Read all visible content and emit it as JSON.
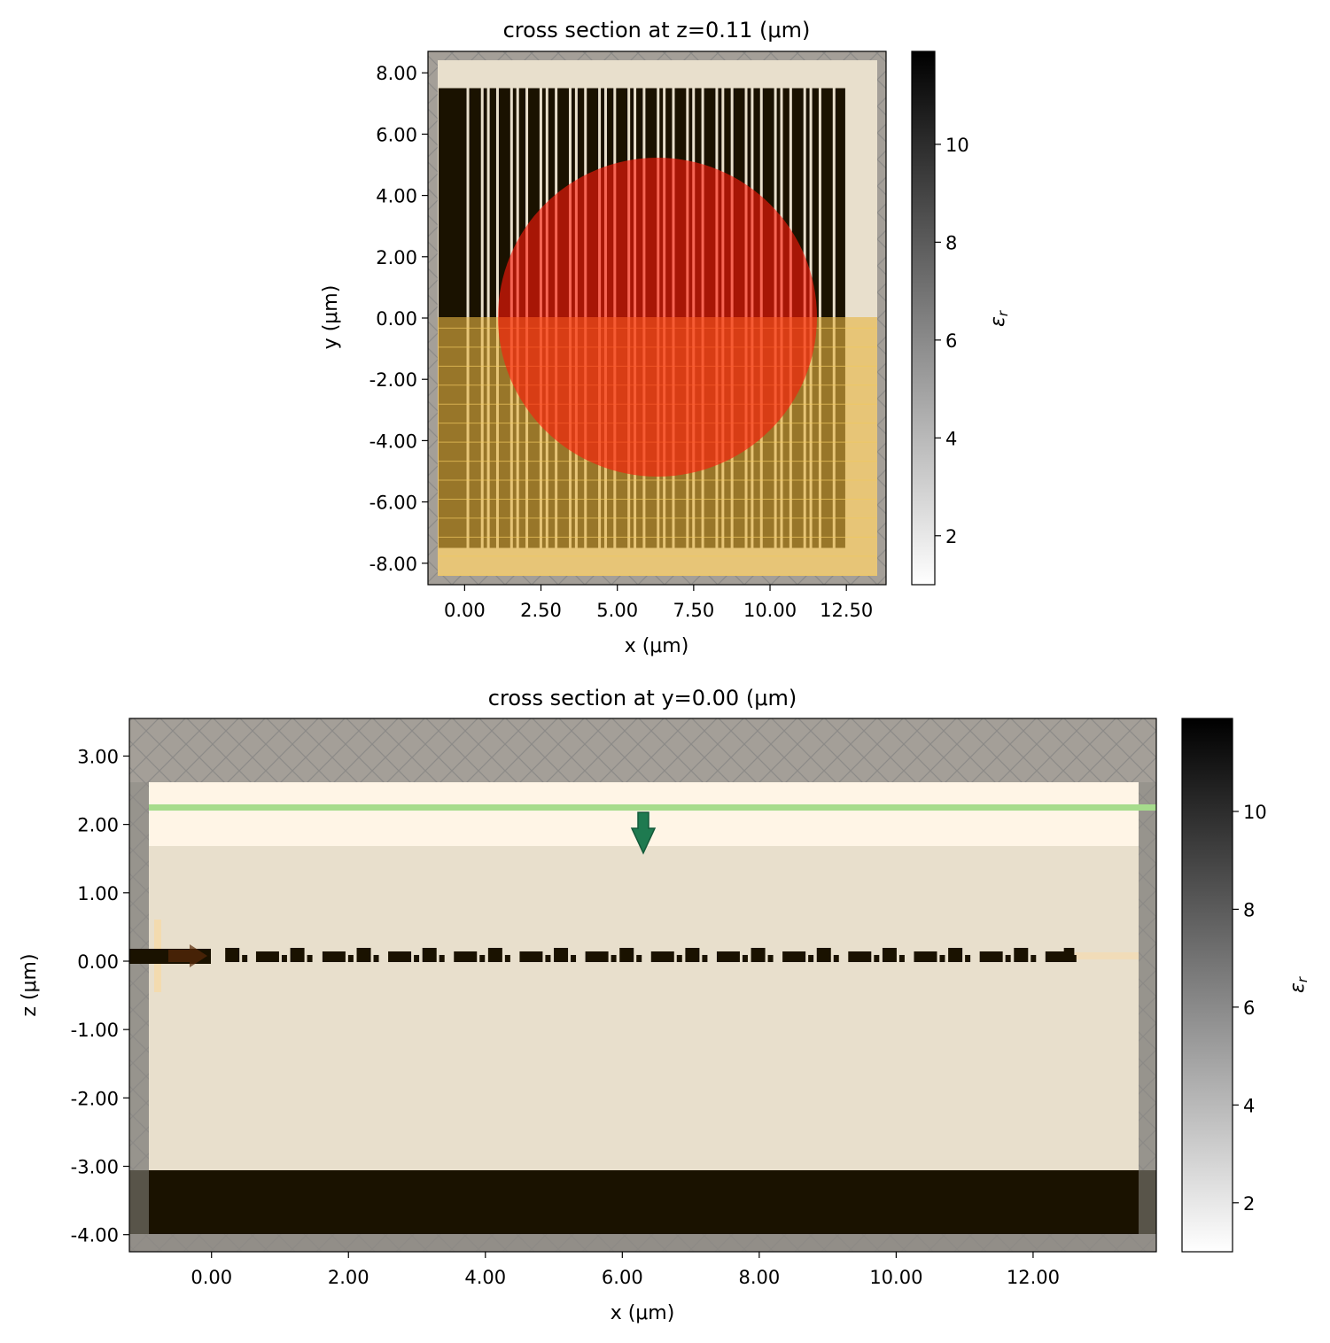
{
  "chart_data": [
    {
      "type": "heatmap",
      "title": "cross section at z=0.11 (μm)",
      "xlabel": "x (μm)",
      "ylabel": "y (μm)",
      "xlim": [
        -1.2,
        13.8
      ],
      "ylim": [
        -8.7,
        8.7
      ],
      "x_ticks": [
        0,
        2.5,
        5,
        7.5,
        10,
        12.5
      ],
      "x_tick_labels": [
        "0.00",
        "2.50",
        "5.00",
        "7.50",
        "10.00",
        "12.50"
      ],
      "y_ticks": [
        8,
        6,
        4,
        2,
        0,
        -2,
        -4,
        -6,
        -8
      ],
      "y_tick_labels": [
        "8.00",
        "6.00",
        "4.00",
        "2.00",
        "0.00",
        "-2.00",
        "-4.00",
        "-6.00",
        "-8.00"
      ],
      "colorbar": {
        "label": "ε_r",
        "range": [
          1,
          11.9
        ],
        "ticks": [
          2,
          4,
          6,
          8,
          10
        ],
        "tick_labels": [
          "2",
          "4",
          "6",
          "8",
          "10"
        ]
      },
      "grating_region": {
        "x": [
          -0.85,
          12.55
        ],
        "y": [
          -7.5,
          7.5
        ]
      },
      "grating_bars_x": [
        -0.85,
        0.15,
        0.62,
        0.82,
        1.12,
        1.58,
        1.78,
        2.08,
        2.54,
        2.74,
        3.04,
        3.5,
        3.7,
        4.0,
        4.46,
        4.66,
        4.96,
        5.42,
        5.62,
        5.92,
        6.38,
        6.58,
        6.88,
        7.34,
        7.54,
        7.84,
        8.3,
        8.5,
        8.8,
        9.26,
        9.46,
        9.76,
        10.22,
        10.42,
        10.72,
        11.18,
        11.38,
        11.68,
        12.14
      ],
      "gaussian_beam": {
        "center": [
          6.2,
          0
        ],
        "radius": 5.2
      },
      "substrate_half": {
        "y": [
          -8.5,
          0
        ]
      }
    },
    {
      "type": "heatmap",
      "title": "cross section at y=0.00 (μm)",
      "xlabel": "x (μm)",
      "ylabel": "z (μm)",
      "xlim": [
        -1.2,
        13.8
      ],
      "ylim": [
        -4.25,
        3.55
      ],
      "x_ticks": [
        0,
        2,
        4,
        6,
        8,
        10,
        12
      ],
      "x_tick_labels": [
        "0.00",
        "2.00",
        "4.00",
        "6.00",
        "8.00",
        "10.00",
        "12.00"
      ],
      "y_ticks": [
        3,
        2,
        1,
        0,
        -1,
        -2,
        -3,
        -4
      ],
      "y_tick_labels": [
        "3.00",
        "2.00",
        "1.00",
        "0.00",
        "-1.00",
        "-2.00",
        "-3.00",
        "-4.00"
      ],
      "colorbar": {
        "label": "ε_r",
        "range": [
          1,
          11.9
        ],
        "ticks": [
          2,
          4,
          6,
          8,
          10
        ],
        "tick_labels": [
          "2",
          "4",
          "6",
          "8",
          "10"
        ]
      },
      "source_plane_z": 2.27,
      "monitor_z": 0.1,
      "substrate_z": [
        -3.95,
        -3.0
      ],
      "cladding_z": [
        1.72,
        2.65
      ],
      "grating_teeth_x": [
        0.2,
        0.65,
        1.15,
        1.62,
        2.12,
        2.58,
        3.08,
        3.54,
        4.04,
        4.5,
        5.0,
        5.46,
        5.96,
        6.42,
        6.92,
        7.38,
        7.88,
        8.34,
        8.84,
        9.3,
        9.8,
        10.26,
        10.76,
        11.22,
        11.72,
        12.18
      ]
    }
  ]
}
